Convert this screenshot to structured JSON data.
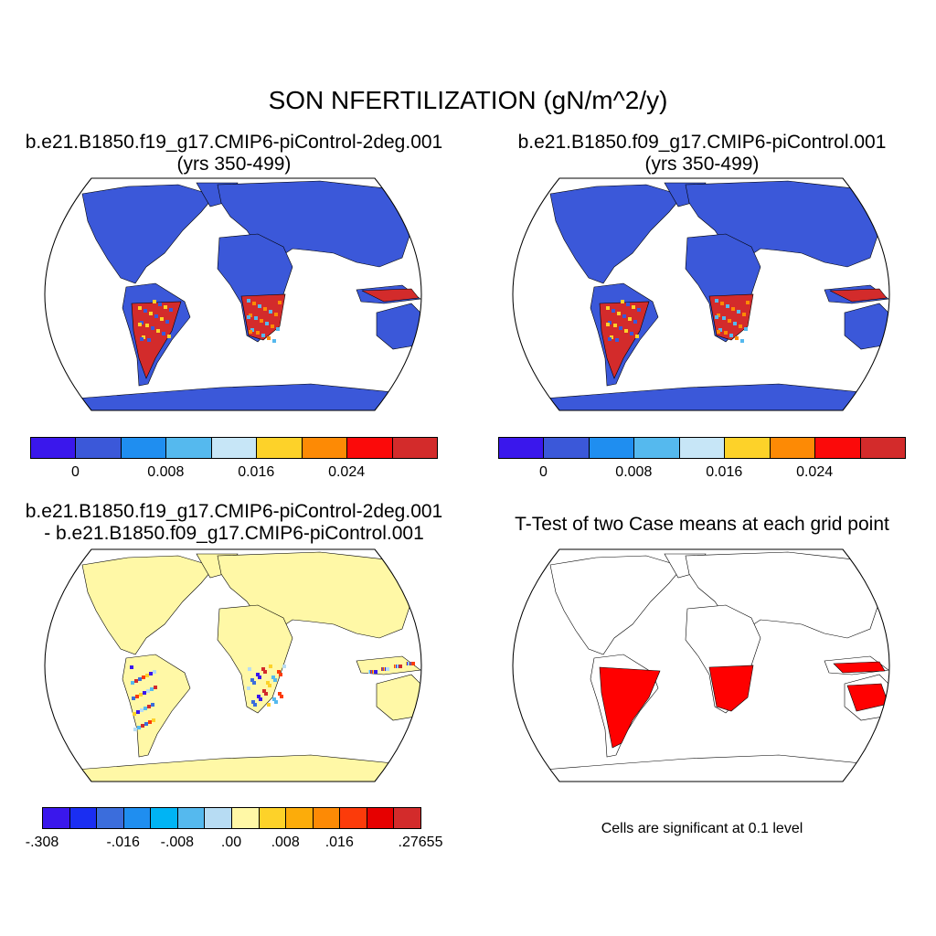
{
  "title": "SON NFERTILIZATION (gN/m^2/y)",
  "panels": [
    {
      "title_line1": "b.e21.B1850.f19_g17.CMIP6-piControl-2deg.001",
      "title_line2": "(yrs 350-499)"
    },
    {
      "title_line1": "b.e21.B1850.f09_g17.CMIP6-piControl.001",
      "title_line2": "(yrs 350-499)"
    },
    {
      "title_line1": "b.e21.B1850.f19_g17.CMIP6-piControl-2deg.001",
      "title_line2": "- b.e21.B1850.f09_g17.CMIP6-piControl.001"
    },
    {
      "title_line1": "T-Test of two Case means at each grid point"
    }
  ],
  "colorbar_case": {
    "colors": [
      "#3a17ec",
      "#3b58d9",
      "#1f8ef0",
      "#55b9ee",
      "#c7e6f7",
      "#fdd229",
      "#fd8a05",
      "#fb0a0a",
      "#d32b2b"
    ],
    "labels": [
      "0",
      "0.008",
      "0.016",
      "0.024"
    ]
  },
  "colorbar_diff": {
    "colors": [
      "#3a17ec",
      "#1a2ef2",
      "#3b6ddc",
      "#1f8ef0",
      "#00b4f4",
      "#55b9ee",
      "#b7dcf3",
      "#fff8a6",
      "#fdd229",
      "#fcac0a",
      "#fd8a05",
      "#fc3b0a",
      "#e60000",
      "#d32b2b"
    ],
    "labels": [
      "-.308",
      "-.016",
      "-.008",
      ".00",
      ".008",
      ".016",
      ".27655"
    ]
  },
  "significance_note": "Cells are significant at 0.1 level",
  "legend_colors": {
    "land_low": "#3b58d9",
    "land_high": "#d32b2b",
    "diff_neutral": "#fff8a6",
    "significant": "#ff0000"
  }
}
